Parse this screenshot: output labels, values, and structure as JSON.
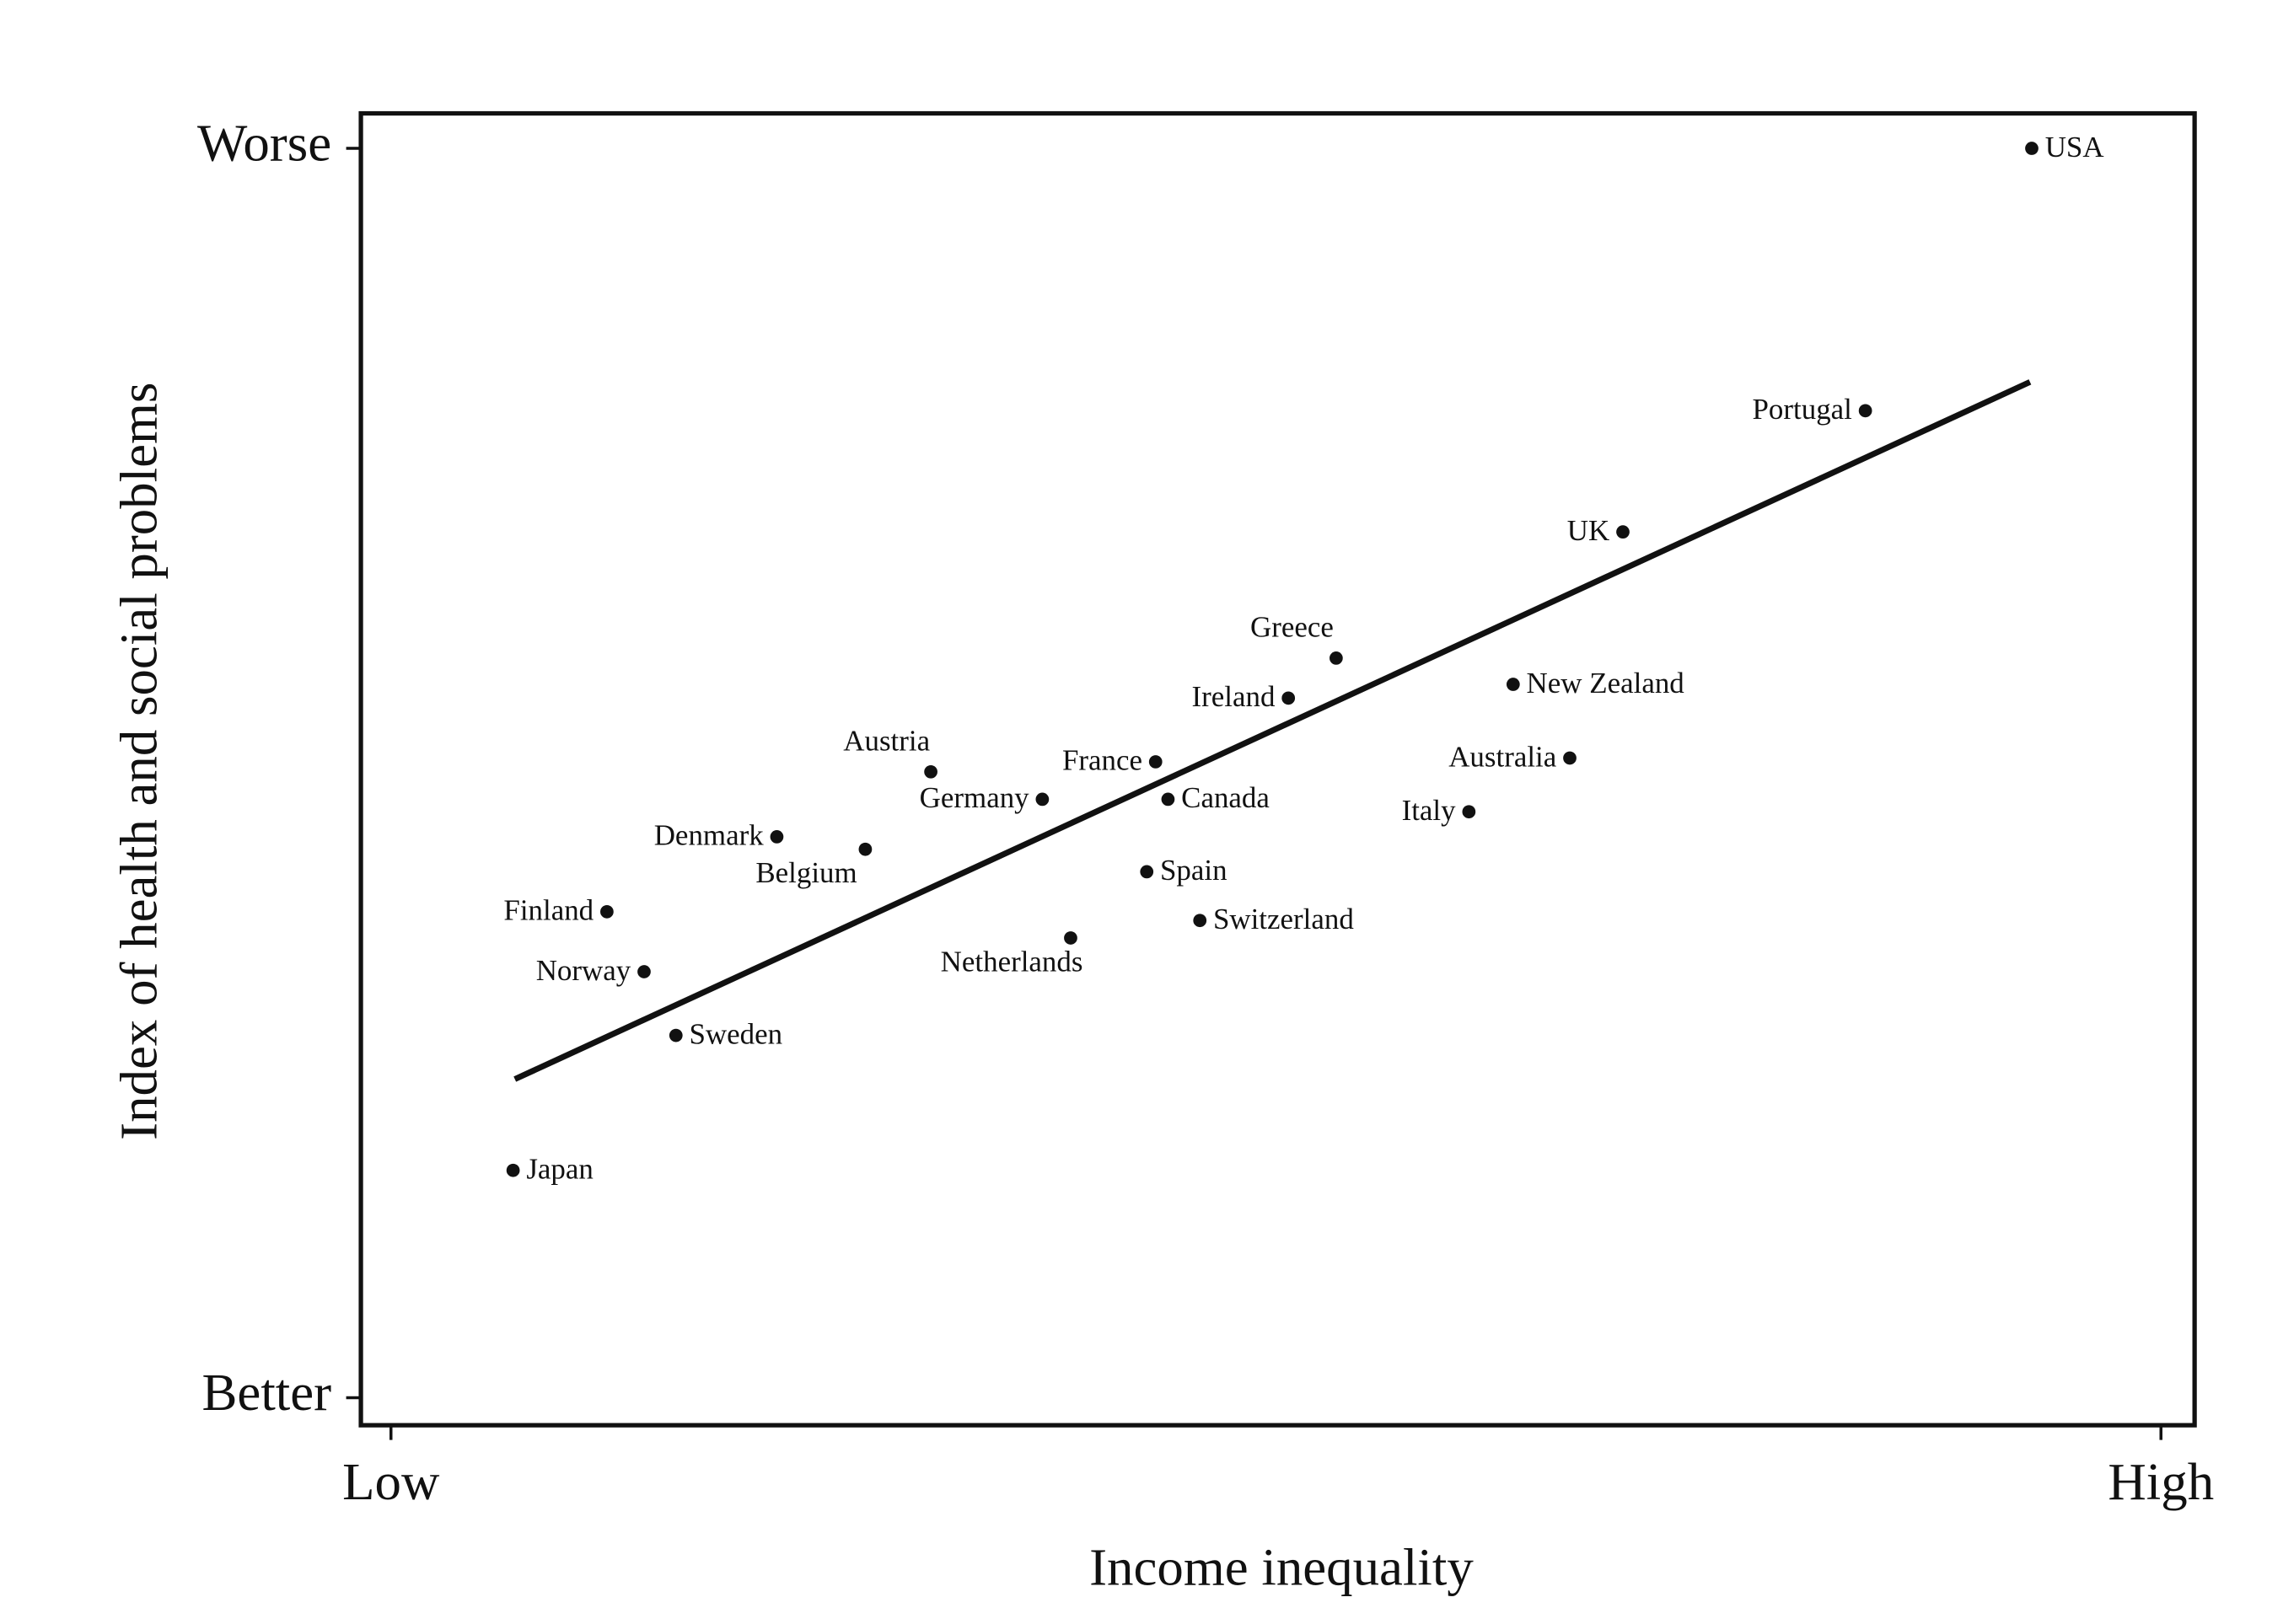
{
  "chart_data": {
    "type": "scatter",
    "x_label": "Income inequality",
    "y_label": "Index of health and social problems",
    "xlim": [
      -1.7,
      101.9
    ],
    "ylim": [
      -2.2,
      102.8
    ],
    "xticks": [
      {
        "value": 0,
        "label": "Low"
      },
      {
        "value": 100,
        "label": "High"
      }
    ],
    "yticks": [
      {
        "value": 0,
        "label": "Better"
      },
      {
        "value": 100,
        "label": "Worse"
      }
    ],
    "point_labels": [
      "USA",
      "Portugal",
      "UK",
      "Greece",
      "Ireland",
      "New Zealand",
      "Austria",
      "France",
      "Australia",
      "Germany",
      "Canada",
      "Italy",
      "Denmark",
      "Belgium",
      "Spain",
      "Finland",
      "Switzerland",
      "Netherlands",
      "Norway",
      "Sweden",
      "Japan"
    ],
    "x": [
      92.7,
      83.3,
      69.6,
      53.4,
      50.7,
      63.4,
      30.5,
      43.2,
      66.6,
      36.8,
      43.9,
      60.9,
      21.8,
      26.8,
      42.7,
      12.2,
      45.7,
      38.4,
      14.3,
      16.1,
      6.9
    ],
    "y": [
      100,
      79.0,
      69.3,
      59.2,
      56.0,
      57.1,
      50.1,
      50.9,
      51.2,
      47.9,
      47.9,
      46.9,
      44.9,
      43.9,
      42.1,
      38.9,
      38.2,
      36.8,
      34.1,
      29.0,
      18.2
    ],
    "color": "#111111",
    "trend_line": {
      "x": [
        7.0,
        92.6
      ],
      "y": [
        25.5,
        81.3
      ]
    }
  }
}
